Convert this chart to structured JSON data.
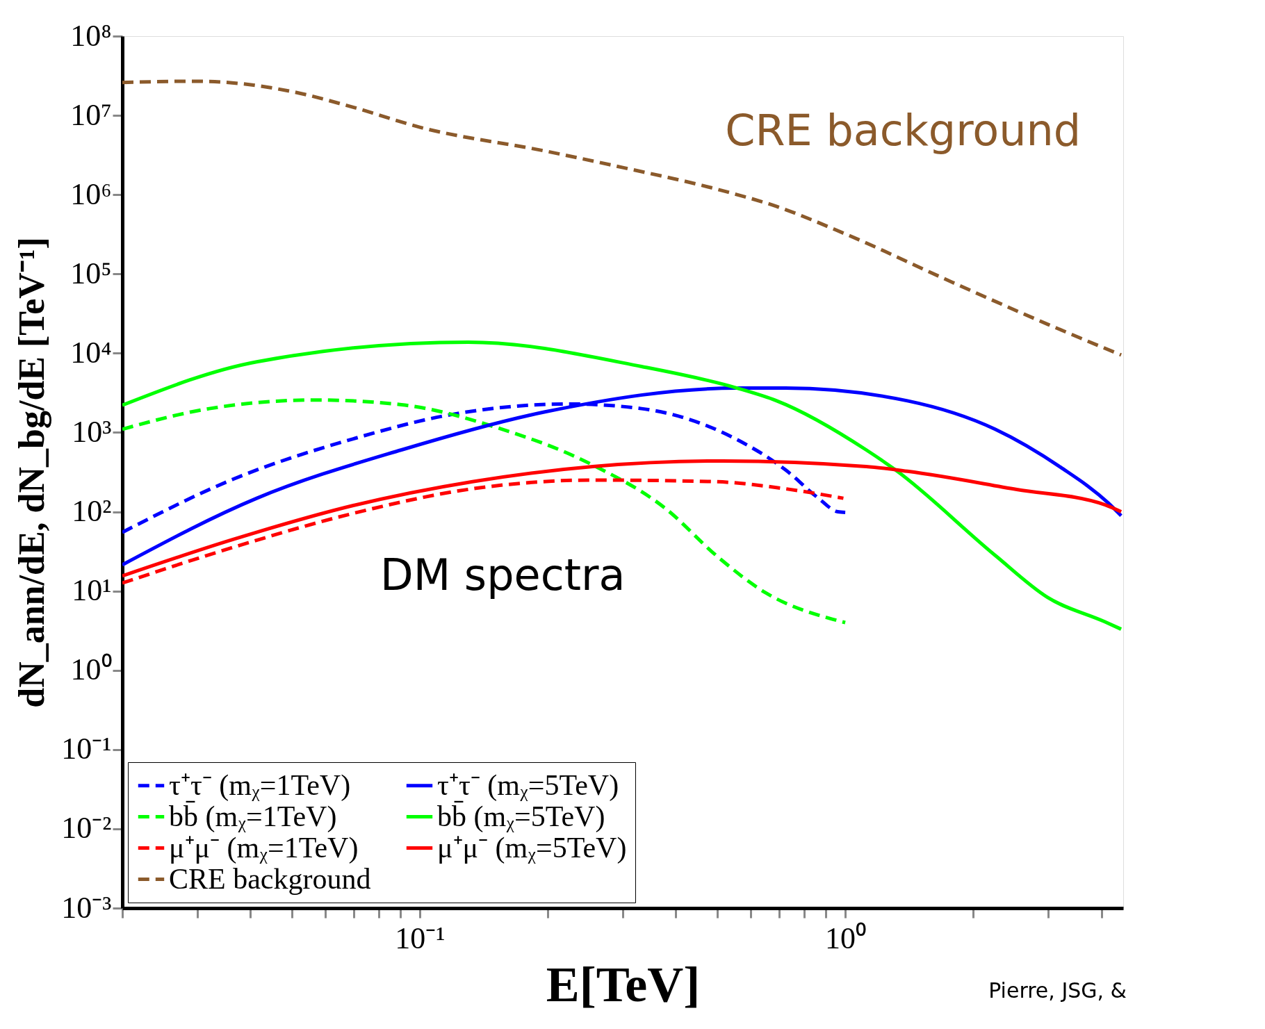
{
  "chart_data": {
    "type": "line",
    "xlabel": "E[TeV]",
    "ylabel": "dN_ann/dE, dN_bg/dE [TeV⁻¹]",
    "log": "xy",
    "grid": false,
    "legend": "bottom left",
    "marker": "none",
    "xlim": [
      0.02,
      4.5
    ],
    "ylim": [
      0.001,
      100000000
    ],
    "xticks": [
      {
        "value": 0.02,
        "label": null
      },
      {
        "value": 0.03,
        "label": null
      },
      {
        "value": 0.04,
        "label": null
      },
      {
        "value": 0.05,
        "label": null
      },
      {
        "value": 0.06,
        "label": null
      },
      {
        "value": 0.07,
        "label": null
      },
      {
        "value": 0.08,
        "label": null
      },
      {
        "value": 0.09,
        "label": null
      },
      {
        "value": 0.1,
        "label": "10⁻¹"
      },
      {
        "value": 0.2,
        "label": null
      },
      {
        "value": 0.3,
        "label": null
      },
      {
        "value": 0.4,
        "label": null
      },
      {
        "value": 0.5,
        "label": null
      },
      {
        "value": 0.6,
        "label": null
      },
      {
        "value": 0.7,
        "label": null
      },
      {
        "value": 0.8,
        "label": null
      },
      {
        "value": 0.9,
        "label": null
      },
      {
        "value": 1,
        "label": "10⁰"
      },
      {
        "value": 2,
        "label": null
      },
      {
        "value": 3,
        "label": null
      },
      {
        "value": 4,
        "label": null
      }
    ],
    "yticks": [
      {
        "value": 0.001,
        "label": "10⁻³"
      },
      {
        "value": 0.01,
        "label": "10⁻²"
      },
      {
        "value": 0.1,
        "label": "10⁻¹"
      },
      {
        "value": 1,
        "label": "10⁰"
      },
      {
        "value": 10,
        "label": "10¹"
      },
      {
        "value": 100,
        "label": "10²"
      },
      {
        "value": 1000,
        "label": "10³"
      },
      {
        "value": 10000,
        "label": "10⁴"
      },
      {
        "value": 100000,
        "label": "10⁵"
      },
      {
        "value": 1000000,
        "label": "10⁶"
      },
      {
        "value": 10000000,
        "label": "10⁷"
      },
      {
        "value": 100000000,
        "label": "10⁸"
      }
    ],
    "series": [
      {
        "name": "τ⁺τ⁻ (mᵪ=1TeV)",
        "color": "#0000ff",
        "line_style": "dashed",
        "x": [
          0.02,
          0.0364,
          0.0698,
          0.117,
          0.224,
          0.332,
          0.557,
          0.723,
          0.865,
          0.96,
          1.0
        ],
        "values": [
          55,
          257,
          832,
          1660,
          2290,
          2000,
          813,
          339,
          148,
          100,
          98
        ]
      },
      {
        "name": "bb̄ (mᵪ=1TeV)",
        "color": "#00ff00",
        "line_style": "dashed",
        "x": [
          0.02,
          0.032,
          0.0568,
          0.0906,
          0.152,
          0.255,
          0.378,
          0.502,
          0.65,
          0.935,
          1.0
        ],
        "values": [
          1100,
          2000,
          2570,
          2240,
          1150,
          389,
          110,
          26.9,
          9.5,
          4.4,
          4.0
        ]
      },
      {
        "name": "μ⁺μ⁻ (mᵪ=1TeV)",
        "color": "#ff0000",
        "line_style": "dashed",
        "x": [
          0.02,
          0.0364,
          0.0698,
          0.133,
          0.255,
          0.49,
          0.723,
          0.99
        ],
        "values": [
          12.6,
          35.5,
          95.5,
          195,
          251,
          240,
          195,
          148
        ]
      },
      {
        "name": "CRE background",
        "color": "#8b5a2b",
        "line_style": "dashed",
        "x": [
          0.02,
          0.03,
          0.05,
          0.07,
          0.1,
          0.2,
          0.3,
          0.5,
          0.69,
          1.0,
          1.78,
          3.0,
          4.45
        ],
        "values": [
          26000000,
          27000000,
          20000000,
          12600000,
          7100000,
          3500000,
          2200000,
          1170000,
          710000,
          320000,
          79000,
          23000,
          9500
        ]
      },
      {
        "name": "τ⁺τ⁻ (mᵪ=5TeV)",
        "color": "#0000ff",
        "line_style": "solid",
        "x": [
          0.02,
          0.0414,
          0.0906,
          0.197,
          0.557,
          0.723,
          1.4,
          2.25,
          3.21,
          4.15,
          4.45
        ],
        "values": [
          21.4,
          148,
          603,
          1820,
          3630,
          3630,
          2510,
          1100,
          363,
          129,
          89
        ]
      },
      {
        "name": "bb̄ (mᵪ=5TeV)",
        "color": "#00ff00",
        "line_style": "solid",
        "x": [
          0.02,
          0.0414,
          0.13,
          0.332,
          0.557,
          0.69,
          1.12,
          1.31,
          2.25,
          2.99,
          4.07,
          4.45
        ],
        "values": [
          2210,
          7800,
          13800,
          6800,
          3630,
          2510,
          603,
          339,
          28.2,
          8.3,
          4.1,
          3.3
        ]
      },
      {
        "name": "μ⁺μ⁻ (mᵪ=5TeV)",
        "color": "#ff0000",
        "line_style": "solid",
        "x": [
          0.02,
          0.0364,
          0.0698,
          0.133,
          0.255,
          0.515,
          1.12,
          1.4,
          2.53,
          4.07,
          4.45
        ],
        "values": [
          15.5,
          44.7,
          120,
          240,
          372,
          437,
          372,
          324,
          191,
          123,
          100
        ]
      }
    ],
    "annotations": [
      "CRE background",
      "DM spectra",
      "Pierre, JSG, &"
    ]
  }
}
